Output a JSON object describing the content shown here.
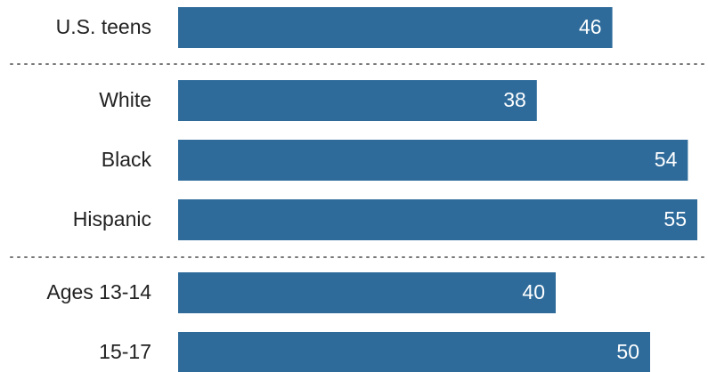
{
  "chart_data": {
    "type": "bar",
    "orientation": "horizontal",
    "categories": [
      "U.S. teens",
      "White",
      "Black",
      "Hispanic",
      "Ages 13-14",
      "15-17"
    ],
    "values": [
      46,
      38,
      54,
      55,
      40,
      50
    ],
    "color": "#2e6b9b"
  }
}
